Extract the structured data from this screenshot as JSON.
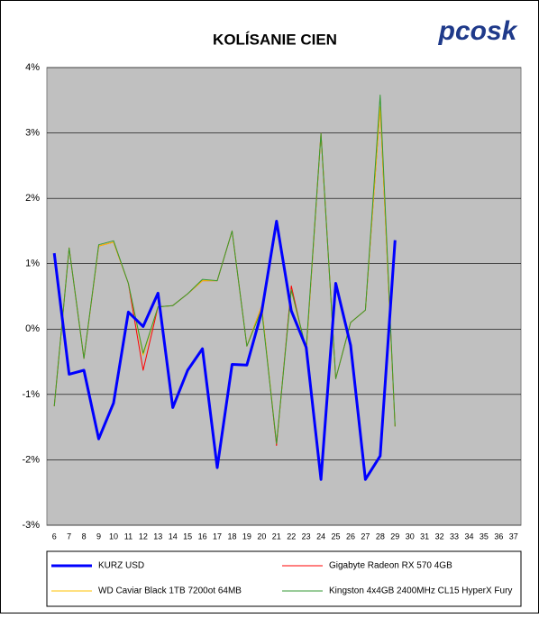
{
  "chart_data": {
    "type": "line",
    "title": "KOLÍSANIE CIEN",
    "logo": "pcosk",
    "categories": [
      "6",
      "7",
      "8",
      "9",
      "10",
      "11",
      "12",
      "13",
      "14",
      "15",
      "16",
      "17",
      "18",
      "19",
      "20",
      "21",
      "22",
      "23",
      "24",
      "25",
      "26",
      "27",
      "28",
      "29",
      "30",
      "31",
      "32",
      "33",
      "34",
      "35",
      "36",
      "37"
    ],
    "ylim": [
      -3,
      4
    ],
    "yticks": [
      {
        "value": -3,
        "label": "-3%"
      },
      {
        "value": -2,
        "label": "-2%"
      },
      {
        "value": -1,
        "label": "-1%"
      },
      {
        "value": 0,
        "label": "0%"
      },
      {
        "value": 1,
        "label": "1%"
      },
      {
        "value": 2,
        "label": "2%"
      },
      {
        "value": 3,
        "label": "3%"
      },
      {
        "value": 4,
        "label": "4%"
      }
    ],
    "grid": true,
    "series": [
      {
        "name": "KURZ USD",
        "color": "#0000ff",
        "values": [
          1.16,
          -0.69,
          -0.63,
          -1.68,
          -1.13,
          0.26,
          0.04,
          0.55,
          -1.2,
          -0.63,
          -0.3,
          -2.12,
          -0.54,
          -0.55,
          0.26,
          1.65,
          0.28,
          -0.28,
          -2.3,
          0.7,
          -0.25,
          -2.3,
          -1.94,
          1.36,
          null,
          null,
          null,
          null,
          null,
          null,
          null,
          null
        ]
      },
      {
        "name": "Gigabyte Radeon RX 570 4GB",
        "color": "#ff0000",
        "values": [
          -1.18,
          1.24,
          -0.45,
          1.27,
          1.33,
          0.7,
          -0.63,
          0.34,
          0.36,
          0.54,
          0.74,
          0.74,
          1.5,
          -0.26,
          0.35,
          -1.78,
          0.66,
          -0.35,
          2.99,
          -0.76,
          0.1,
          0.29,
          3.4,
          -1.49,
          null,
          null,
          null,
          null,
          null,
          null,
          null,
          null
        ]
      },
      {
        "name": "WD Caviar Black 1TB 7200ot 64MB",
        "color": "#ffc000",
        "values": [
          -1.18,
          1.24,
          -0.45,
          1.27,
          1.33,
          0.7,
          -0.4,
          0.34,
          0.36,
          0.54,
          0.74,
          0.74,
          1.5,
          -0.26,
          0.35,
          -1.75,
          0.6,
          -0.35,
          2.99,
          -0.76,
          0.1,
          0.29,
          3.4,
          -1.49,
          null,
          null,
          null,
          null,
          null,
          null,
          null,
          null
        ]
      },
      {
        "name": "Kingston 4x4GB 2400MHz CL15 HyperX Fury",
        "color": "#339933",
        "values": [
          -1.18,
          1.24,
          -0.45,
          1.29,
          1.35,
          0.7,
          -0.37,
          0.34,
          0.36,
          0.54,
          0.76,
          0.74,
          1.5,
          -0.26,
          0.3,
          -1.75,
          0.6,
          -0.3,
          2.99,
          -0.76,
          0.1,
          0.29,
          3.58,
          -1.49,
          null,
          null,
          null,
          null,
          null,
          null,
          null,
          null
        ]
      }
    ]
  }
}
